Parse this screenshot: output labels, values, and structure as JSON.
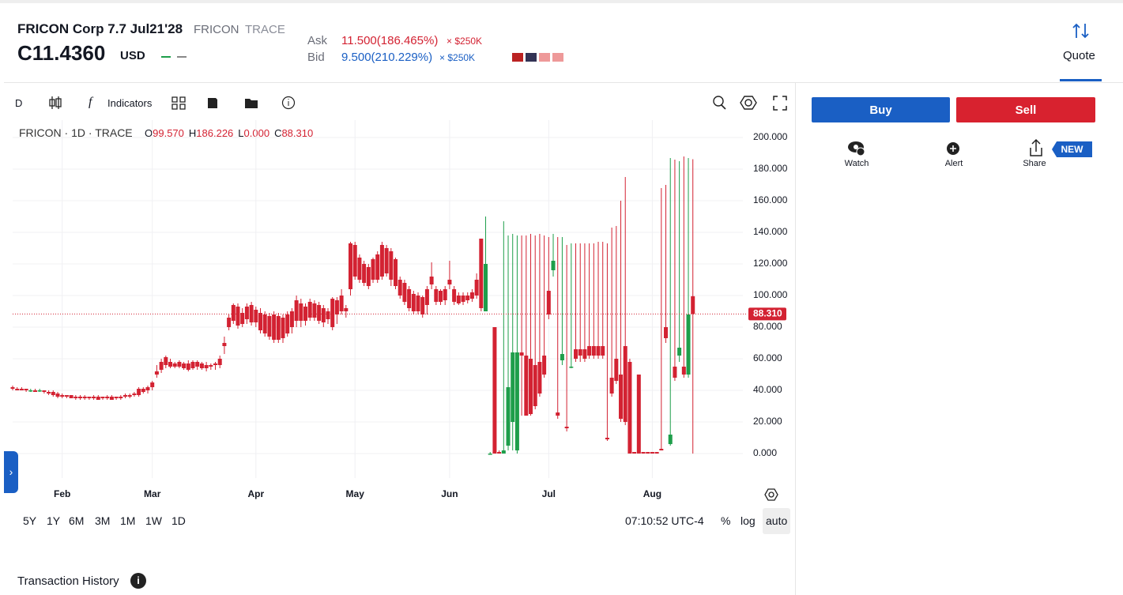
{
  "header": {
    "title": "FRICON Corp 7.7 Jul21'28",
    "ticker": "FRICON",
    "source": "TRACE",
    "price": "C11.4360",
    "currency": "USD",
    "ask_label": "Ask",
    "ask_value": "11.500(186.465%)",
    "ask_size": "× $250K",
    "bid_label": "Bid",
    "bid_value": "9.500(210.229%)",
    "bid_size": "× $250K",
    "quote_tab": "Quote"
  },
  "toolbar": {
    "interval": "D",
    "indicators": "Indicators"
  },
  "side": {
    "buy": "Buy",
    "sell": "Sell",
    "watch": "Watch",
    "alert": "Alert",
    "share": "Share",
    "new_badge": "NEW"
  },
  "bottom": {
    "ranges": [
      "5Y",
      "1Y",
      "6M",
      "3M",
      "1M",
      "1W",
      "1D"
    ],
    "time": "07:10:52 UTC-4",
    "percent": "%",
    "log": "log",
    "auto": "auto",
    "history": "Transaction History"
  },
  "chart_data": {
    "type": "candlestick",
    "name": "FRICON · 1D · TRACE",
    "legend": [
      {
        "key": "O",
        "value": "99.570"
      },
      {
        "key": "H",
        "value": "186.226"
      },
      {
        "key": "L",
        "value": "0.000"
      },
      {
        "key": "C",
        "value": "88.310"
      }
    ],
    "up_color": "#1e9e4a",
    "down_color": "#d32232",
    "grid": true,
    "last_price": {
      "value": 88.31,
      "label": "88.310"
    },
    "xlim": [
      0,
      162.1
    ],
    "ylim": [
      0,
      200
    ],
    "xticks": [
      {
        "value": 11,
        "label": "Feb"
      },
      {
        "value": 31,
        "label": "Mar"
      },
      {
        "value": 54,
        "label": "Apr"
      },
      {
        "value": 76,
        "label": "May"
      },
      {
        "value": 97,
        "label": "Jun"
      },
      {
        "value": 119,
        "label": "Jul"
      },
      {
        "value": 142,
        "label": "Aug"
      }
    ],
    "yticks": [
      {
        "value": 0,
        "label": "0.000"
      },
      {
        "value": 20,
        "label": "20.000"
      },
      {
        "value": 40,
        "label": "40.000"
      },
      {
        "value": 60,
        "label": "60.000"
      },
      {
        "value": 80,
        "label": "80.000"
      },
      {
        "value": 100,
        "label": "100.000"
      },
      {
        "value": 120,
        "label": "120.000"
      },
      {
        "value": 140,
        "label": "140.000"
      },
      {
        "value": 160,
        "label": "160.000"
      },
      {
        "value": 180,
        "label": "180.000"
      },
      {
        "value": 200,
        "label": "200.000"
      }
    ],
    "ohlc": [
      [
        42,
        43,
        40,
        41
      ],
      [
        41,
        42,
        40,
        40
      ],
      [
        41,
        42,
        40,
        40
      ],
      [
        41,
        41,
        39,
        40
      ],
      [
        40,
        41,
        39,
        40
      ],
      [
        40,
        41,
        39,
        39
      ],
      [
        40,
        41,
        39,
        40
      ],
      [
        40,
        40,
        38,
        39
      ],
      [
        39,
        40,
        37,
        38
      ],
      [
        39,
        40,
        36,
        37
      ],
      [
        38,
        39,
        35,
        36
      ],
      [
        37,
        38,
        35,
        36
      ],
      [
        37,
        37,
        35,
        36
      ],
      [
        37,
        37,
        35,
        35
      ],
      [
        36,
        37,
        34,
        35
      ],
      [
        36,
        37,
        34,
        35
      ],
      [
        36,
        37,
        34,
        35
      ],
      [
        36,
        36,
        34,
        35
      ],
      [
        36,
        37,
        34,
        35
      ],
      [
        36,
        37,
        34,
        34
      ],
      [
        36,
        36,
        34,
        35
      ],
      [
        36,
        37,
        34,
        35
      ],
      [
        36,
        37,
        34,
        34
      ],
      [
        36,
        36,
        34,
        35
      ],
      [
        36,
        37,
        34,
        35
      ],
      [
        37,
        38,
        35,
        36
      ],
      [
        37,
        38,
        35,
        36
      ],
      [
        38,
        39,
        36,
        37
      ],
      [
        41,
        42,
        36,
        37
      ],
      [
        41,
        42,
        38,
        39
      ],
      [
        42,
        43,
        38,
        40
      ],
      [
        45,
        46,
        40,
        42
      ],
      [
        52,
        56,
        48,
        50
      ],
      [
        58,
        60,
        51,
        53
      ],
      [
        61,
        62,
        54,
        56
      ],
      [
        58,
        60,
        54,
        55
      ],
      [
        57,
        58,
        54,
        55
      ],
      [
        58,
        59,
        54,
        55
      ],
      [
        57,
        58,
        53,
        54
      ],
      [
        57,
        59,
        52,
        53
      ],
      [
        58,
        59,
        53,
        54
      ],
      [
        58,
        59,
        53,
        55
      ],
      [
        57,
        58,
        53,
        54
      ],
      [
        56,
        58,
        52,
        54
      ],
      [
        56,
        57,
        53,
        55
      ],
      [
        57,
        58,
        53,
        56
      ],
      [
        60,
        62,
        54,
        56
      ],
      [
        70,
        74,
        63,
        68
      ],
      [
        86,
        88,
        78,
        80
      ],
      [
        94,
        95,
        82,
        84
      ],
      [
        93,
        95,
        79,
        81
      ],
      [
        89,
        92,
        80,
        82
      ],
      [
        93,
        95,
        82,
        85
      ],
      [
        94,
        96,
        81,
        83
      ],
      [
        91,
        93,
        80,
        83
      ],
      [
        89,
        92,
        76,
        78
      ],
      [
        88,
        90,
        74,
        76
      ],
      [
        87,
        89,
        72,
        74
      ],
      [
        88,
        90,
        70,
        72
      ],
      [
        87,
        89,
        70,
        72
      ],
      [
        86,
        88,
        70,
        73
      ],
      [
        88,
        90,
        74,
        76
      ],
      [
        90,
        92,
        76,
        80
      ],
      [
        97,
        100,
        80,
        84
      ],
      [
        95,
        98,
        80,
        84
      ],
      [
        93,
        95,
        81,
        84
      ],
      [
        96,
        98,
        84,
        86
      ],
      [
        95,
        97,
        84,
        86
      ],
      [
        94,
        96,
        82,
        84
      ],
      [
        92,
        94,
        80,
        83
      ],
      [
        90,
        92,
        82,
        85
      ],
      [
        98,
        99,
        78,
        80
      ],
      [
        97,
        99,
        82,
        88
      ],
      [
        100,
        104,
        88,
        90
      ],
      [
        92,
        94,
        86,
        90
      ],
      [
        133,
        134,
        100,
        104
      ],
      [
        132,
        134,
        110,
        112
      ],
      [
        124,
        126,
        108,
        110
      ],
      [
        120,
        122,
        106,
        108
      ],
      [
        118,
        120,
        104,
        106
      ],
      [
        123,
        124,
        108,
        110
      ],
      [
        126,
        128,
        108,
        110
      ],
      [
        132,
        134,
        110,
        112
      ],
      [
        130,
        132,
        112,
        114
      ],
      [
        128,
        130,
        106,
        110
      ],
      [
        123,
        124,
        104,
        106
      ],
      [
        110,
        112,
        98,
        100
      ],
      [
        108,
        110,
        94,
        96
      ],
      [
        104,
        106,
        90,
        92
      ],
      [
        101,
        103,
        88,
        90
      ],
      [
        100,
        102,
        88,
        90
      ],
      [
        99,
        100,
        86,
        88
      ],
      [
        104,
        106,
        88,
        94
      ],
      [
        112,
        121,
        104,
        107
      ],
      [
        104,
        106,
        94,
        96
      ],
      [
        103,
        104,
        94,
        96
      ],
      [
        104,
        106,
        94,
        97
      ],
      [
        110,
        122,
        104,
        107
      ],
      [
        104,
        106,
        94,
        96
      ],
      [
        100,
        102,
        94,
        95
      ],
      [
        100,
        102,
        94,
        96
      ],
      [
        100,
        102,
        95,
        97
      ],
      [
        102,
        104,
        96,
        98
      ],
      [
        110,
        114,
        98,
        100
      ],
      [
        136,
        136,
        90,
        92
      ],
      [
        90,
        150,
        90,
        120
      ],
      [
        0,
        1,
        0,
        0
      ],
      [
        80,
        80,
        0,
        0
      ],
      [
        1,
        2,
        0,
        0
      ],
      [
        0,
        147,
        0,
        2
      ],
      [
        5,
        138,
        2,
        42
      ],
      [
        20,
        139,
        2,
        64
      ],
      [
        2,
        138,
        0,
        64
      ],
      [
        64,
        138,
        24,
        62
      ],
      [
        62,
        138,
        25,
        24
      ],
      [
        60,
        139,
        24,
        25
      ],
      [
        56,
        138,
        28,
        30
      ],
      [
        58,
        139,
        36,
        38
      ],
      [
        62,
        138,
        48,
        50
      ],
      [
        103,
        137,
        85,
        88
      ],
      [
        116,
        139,
        112,
        122
      ],
      [
        26,
        137,
        22,
        24
      ],
      [
        59,
        137,
        56,
        63
      ],
      [
        17,
        132,
        14,
        16
      ],
      [
        55,
        133,
        54,
        55
      ],
      [
        66,
        133,
        58,
        60
      ],
      [
        66,
        133,
        58,
        62
      ],
      [
        66,
        133,
        58,
        60
      ],
      [
        68,
        133,
        60,
        62
      ],
      [
        68,
        133,
        60,
        62
      ],
      [
        68,
        134,
        60,
        62
      ],
      [
        68,
        134,
        60,
        62
      ],
      [
        10,
        133,
        8,
        9
      ],
      [
        48,
        143,
        36,
        38
      ],
      [
        60,
        144,
        44,
        46
      ],
      [
        50,
        160,
        20,
        22
      ],
      [
        68,
        175,
        18,
        20
      ],
      [
        58,
        60,
        0,
        0
      ],
      [
        1,
        1,
        0,
        0
      ],
      [
        50,
        50,
        0,
        0
      ],
      [
        1,
        1,
        0,
        0
      ],
      [
        1,
        1,
        0,
        0
      ],
      [
        1,
        1,
        0,
        0
      ],
      [
        1,
        1,
        0,
        0
      ],
      [
        3,
        168,
        2,
        2
      ],
      [
        80,
        170,
        70,
        73
      ],
      [
        6,
        187,
        5,
        12
      ],
      [
        55,
        186,
        46,
        48
      ],
      [
        62,
        185,
        58,
        67
      ],
      [
        55,
        188,
        48,
        50
      ],
      [
        50,
        187,
        48,
        88
      ],
      [
        99.57,
        186.226,
        0,
        88.31
      ]
    ]
  }
}
